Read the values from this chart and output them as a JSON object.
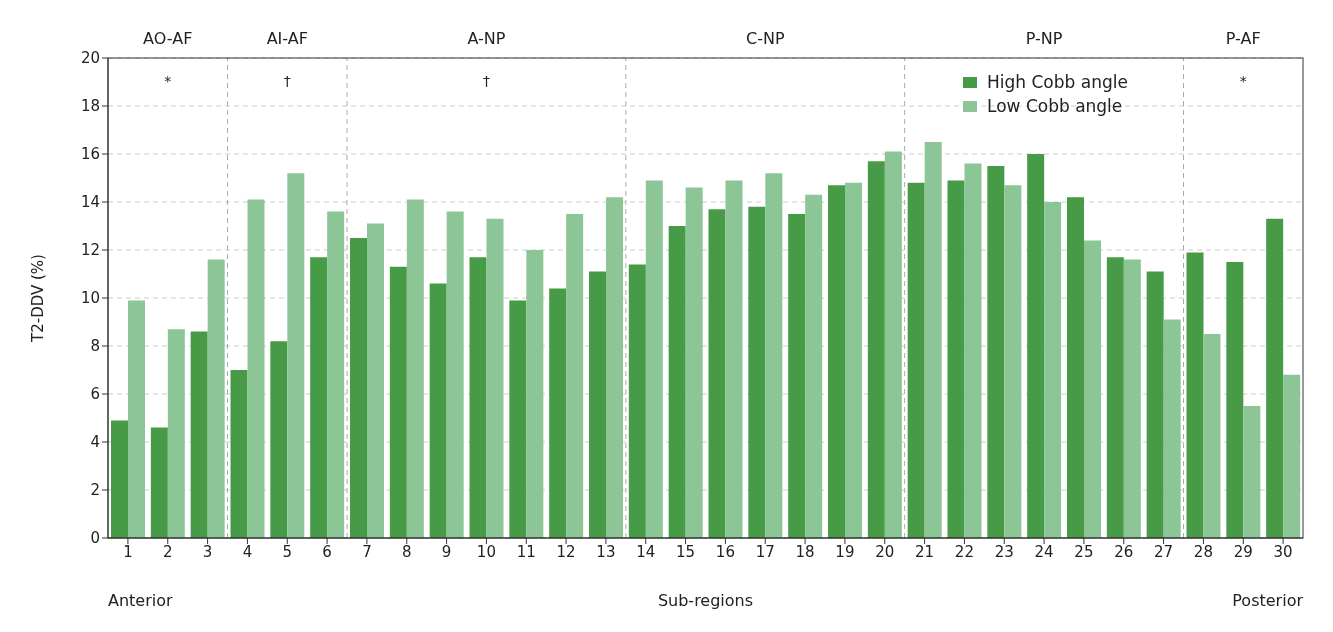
{
  "chart_data": {
    "type": "bar",
    "xlabel": "Sub-regions",
    "ylabel": "T2-DDV (%)",
    "x": [
      1,
      2,
      3,
      4,
      5,
      6,
      7,
      8,
      9,
      10,
      11,
      12,
      13,
      14,
      15,
      16,
      17,
      18,
      19,
      20,
      21,
      22,
      23,
      24,
      25,
      26,
      27,
      28,
      29,
      30
    ],
    "xlim": [
      0.5,
      30.5
    ],
    "xticks": [
      1,
      2,
      3,
      4,
      5,
      6,
      7,
      8,
      9,
      10,
      11,
      12,
      13,
      14,
      15,
      16,
      17,
      18,
      19,
      20,
      21,
      22,
      23,
      24,
      25,
      26,
      27,
      28,
      29,
      30
    ],
    "ylim": [
      0,
      20
    ],
    "yticks": [
      0,
      2,
      4,
      6,
      8,
      10,
      12,
      14,
      16,
      18,
      20
    ],
    "series": [
      {
        "name": "High Cobb angle",
        "color": "#479b47",
        "values": [
          4.9,
          4.6,
          8.6,
          7.0,
          8.2,
          11.7,
          12.5,
          11.3,
          10.6,
          11.7,
          9.9,
          10.4,
          11.1,
          11.4,
          13.0,
          13.7,
          13.8,
          13.5,
          14.7,
          15.7,
          14.8,
          14.9,
          15.5,
          16.0,
          14.2,
          11.7,
          11.1,
          11.9,
          11.5,
          13.3
        ]
      },
      {
        "name": "Low Cobb angle",
        "color": "#8cc596",
        "values": [
          9.9,
          8.7,
          11.6,
          14.1,
          15.2,
          13.6,
          13.1,
          14.1,
          13.6,
          13.3,
          12.0,
          13.5,
          14.2,
          14.9,
          14.6,
          14.9,
          15.2,
          14.3,
          14.8,
          16.1,
          16.5,
          15.6,
          14.7,
          14.0,
          12.4,
          11.6,
          9.1,
          8.5,
          5.5,
          6.8
        ]
      }
    ],
    "ref_lines": [
      {
        "axis": "x",
        "value": 3.5,
        "color": "#aaaaaa",
        "line_style": "dashed"
      },
      {
        "axis": "x",
        "value": 6.5,
        "color": "#aaaaaa",
        "line_style": "dashed"
      },
      {
        "axis": "x",
        "value": 13.5,
        "color": "#aaaaaa",
        "line_style": "dashed"
      },
      {
        "axis": "x",
        "value": 20.5,
        "color": "#aaaaaa",
        "line_style": "dashed"
      },
      {
        "axis": "x",
        "value": 27.5,
        "color": "#aaaaaa",
        "line_style": "dashed"
      }
    ],
    "annotations": [
      "AO-AF",
      "AI-AF",
      "A-NP",
      "C-NP",
      "P-NP",
      "P-AF",
      "*",
      "†",
      "†",
      "*",
      "Anterior",
      "Posterior"
    ],
    "grid": "y",
    "legend": "top right"
  }
}
